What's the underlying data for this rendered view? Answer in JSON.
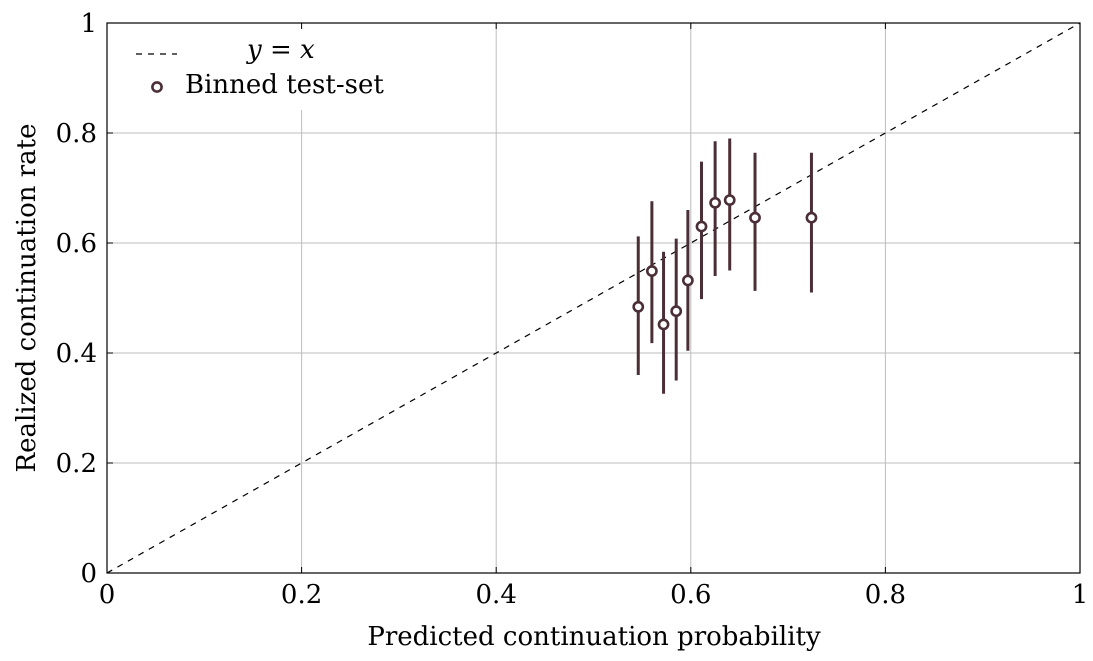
{
  "chart_data": {
    "type": "scatter",
    "title": "",
    "xlabel": "Predicted continuation probability",
    "ylabel": "Realized continuation rate",
    "xlim": [
      0,
      1
    ],
    "ylim": [
      0,
      1
    ],
    "grid": true,
    "legend_position": "top-left",
    "x_ticks": [
      {
        "value": 0,
        "label": "0"
      },
      {
        "value": 0.2,
        "label": "0.2"
      },
      {
        "value": 0.4,
        "label": "0.4"
      },
      {
        "value": 0.6,
        "label": "0.6"
      },
      {
        "value": 0.8,
        "label": "0.8"
      },
      {
        "value": 1,
        "label": "1"
      }
    ],
    "y_ticks": [
      {
        "value": 0,
        "label": "0"
      },
      {
        "value": 0.2,
        "label": "0.2"
      },
      {
        "value": 0.4,
        "label": "0.4"
      },
      {
        "value": 0.6,
        "label": "0.6"
      },
      {
        "value": 0.8,
        "label": "0.8"
      },
      {
        "value": 1,
        "label": "1"
      }
    ],
    "series": [
      {
        "name": "y = x",
        "kind": "reference-line",
        "style": "dashed",
        "color": "#000000",
        "points": [
          {
            "x": 0,
            "y": 0
          },
          {
            "x": 1,
            "y": 1
          }
        ]
      },
      {
        "name": "Binned test-set",
        "kind": "points-with-errorbars",
        "color": "#4b2f37",
        "points": [
          {
            "x": 0.546,
            "y": 0.484,
            "ylow": 0.36,
            "yhigh": 0.612
          },
          {
            "x": 0.56,
            "y": 0.549,
            "ylow": 0.418,
            "yhigh": 0.676
          },
          {
            "x": 0.572,
            "y": 0.452,
            "ylow": 0.326,
            "yhigh": 0.584
          },
          {
            "x": 0.585,
            "y": 0.476,
            "ylow": 0.35,
            "yhigh": 0.608
          },
          {
            "x": 0.597,
            "y": 0.532,
            "ylow": 0.404,
            "yhigh": 0.66
          },
          {
            "x": 0.611,
            "y": 0.63,
            "ylow": 0.498,
            "yhigh": 0.748
          },
          {
            "x": 0.625,
            "y": 0.673,
            "ylow": 0.54,
            "yhigh": 0.785
          },
          {
            "x": 0.64,
            "y": 0.678,
            "ylow": 0.55,
            "yhigh": 0.79
          },
          {
            "x": 0.666,
            "y": 0.646,
            "ylow": 0.513,
            "yhigh": 0.764
          },
          {
            "x": 0.724,
            "y": 0.646,
            "ylow": 0.51,
            "yhigh": 0.764
          }
        ]
      }
    ]
  },
  "legend": {
    "reference_label": "y = x",
    "points_label": "Binned test-set"
  }
}
